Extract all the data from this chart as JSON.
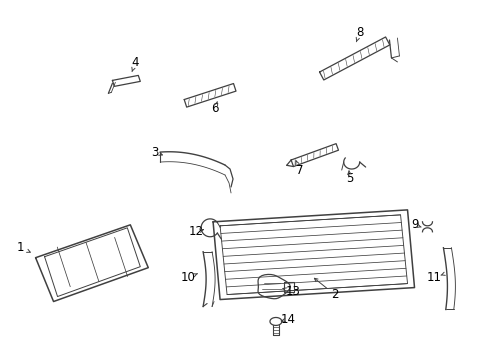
{
  "background_color": "#ffffff",
  "line_color": "#404040",
  "label_color": "#000000",
  "fig_width": 4.89,
  "fig_height": 3.6,
  "dpi": 100
}
